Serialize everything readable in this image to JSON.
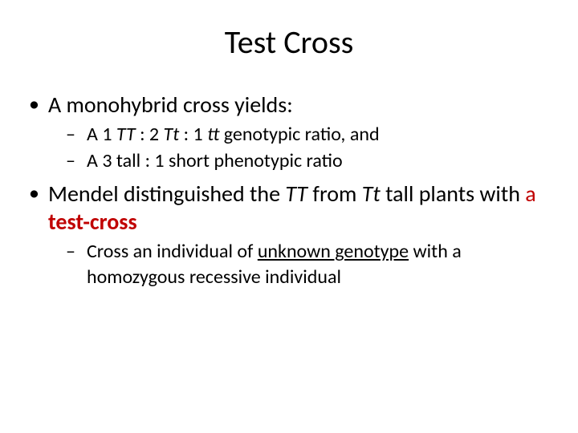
{
  "title": "Test Cross",
  "colors": {
    "text": "#000000",
    "accent": "#c00000",
    "background": "#ffffff"
  },
  "typography": {
    "title_fontsize": 40,
    "level1_fontsize": 28,
    "level2_fontsize": 24,
    "font_family": "Calibri"
  },
  "bullets": [
    {
      "runs": [
        {
          "text": "A monohybrid cross yields:"
        }
      ],
      "sub": [
        {
          "runs": [
            {
              "text": "A 1 "
            },
            {
              "text": "TT",
              "italic": true
            },
            {
              "text": " : 2 "
            },
            {
              "text": "Tt",
              "italic": true
            },
            {
              "text": " : 1 "
            },
            {
              "text": "tt",
              "italic": true
            },
            {
              "text": "     genotypic ratio, and"
            }
          ]
        },
        {
          "runs": [
            {
              "text": "A 3 tall : 1 short phenotypic ratio"
            }
          ]
        }
      ]
    },
    {
      "runs": [
        {
          "text": "Mendel distinguished the "
        },
        {
          "text": "TT",
          "italic": true
        },
        {
          "text": " from "
        },
        {
          "text": "Tt",
          "italic": true
        },
        {
          "text": " tall plants with "
        },
        {
          "text": "a ",
          "red": true
        },
        {
          "text": "test-cross",
          "red": true,
          "bold": true
        }
      ],
      "sub": [
        {
          "runs": [
            {
              "text": "Cross an individual of "
            },
            {
              "text": "unknown genotype",
              "underline": true
            },
            {
              "text": " with a homozygous recessive individual"
            }
          ]
        }
      ]
    }
  ]
}
